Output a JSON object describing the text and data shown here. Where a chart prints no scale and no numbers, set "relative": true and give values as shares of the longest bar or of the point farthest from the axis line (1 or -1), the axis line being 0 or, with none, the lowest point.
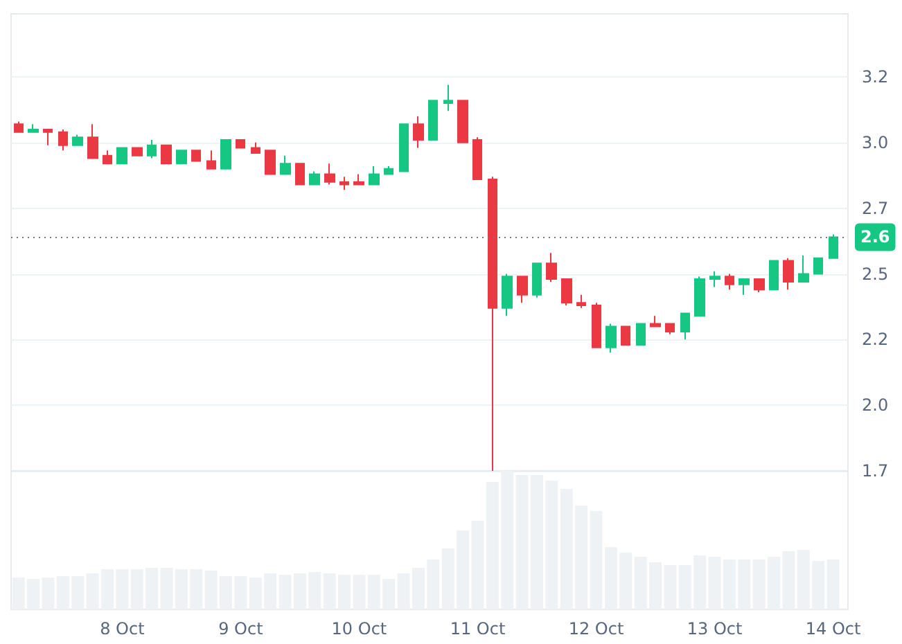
{
  "chart_data": [
    {
      "type": "candlestick",
      "x": [
        "--10-07T03:00",
        "--10-07T06:00",
        "--10-07T09:00",
        "--10-07T12:00",
        "--10-07T15:00",
        "--10-07T18:00",
        "--10-07T21:00",
        "--10-08T00:00",
        "--10-08T03:00",
        "--10-08T06:00",
        "--10-08T09:00",
        "--10-08T12:00",
        "--10-08T15:00",
        "--10-08T18:00",
        "--10-08T21:00",
        "--10-09T00:00",
        "--10-09T03:00",
        "--10-09T06:00",
        "--10-09T09:00",
        "--10-09T12:00",
        "--10-09T15:00",
        "--10-09T18:00",
        "--10-09T21:00",
        "--10-10T00:00",
        "--10-10T03:00",
        "--10-10T06:00",
        "--10-10T09:00",
        "--10-10T12:00",
        "--10-10T15:00",
        "--10-10T18:00",
        "--10-10T21:00",
        "--10-11T00:00",
        "--10-11T03:00",
        "--10-11T06:00",
        "--10-11T09:00",
        "--10-11T12:00",
        "--10-11T15:00",
        "--10-11T18:00",
        "--10-11T21:00",
        "--10-12T00:00",
        "--10-12T03:00",
        "--10-12T06:00",
        "--10-12T09:00",
        "--10-12T12:00",
        "--10-12T15:00",
        "--10-12T18:00",
        "--10-12T21:00",
        "--10-13T00:00",
        "--10-13T03:00",
        "--10-13T06:00",
        "--10-13T09:00",
        "--10-13T12:00",
        "--10-13T15:00",
        "--10-13T18:00",
        "--10-13T21:00",
        "--10-14T00:00"
      ],
      "ohlc": [
        [
          3.07,
          3.08,
          3.04,
          3.04
        ],
        [
          3.04,
          3.07,
          3.04,
          3.05
        ],
        [
          3.05,
          3.05,
          2.99,
          3.04
        ],
        [
          3.04,
          3.05,
          2.97,
          2.99
        ],
        [
          2.99,
          3.03,
          2.99,
          3.02
        ],
        [
          3.02,
          3.07,
          2.94,
          2.94
        ],
        [
          2.95,
          2.97,
          2.92,
          2.92
        ],
        [
          2.92,
          2.98,
          2.92,
          2.98
        ],
        [
          2.98,
          2.98,
          2.95,
          2.95
        ],
        [
          2.95,
          3.01,
          2.94,
          2.99
        ],
        [
          2.99,
          2.99,
          2.92,
          2.92
        ],
        [
          2.92,
          2.97,
          2.92,
          2.97
        ],
        [
          2.97,
          2.97,
          2.93,
          2.93
        ],
        [
          2.93,
          2.97,
          2.9,
          2.9
        ],
        [
          2.9,
          3.01,
          2.9,
          3.01
        ],
        [
          3.01,
          3.01,
          2.98,
          2.98
        ],
        [
          2.98,
          3.0,
          2.96,
          2.96
        ],
        [
          2.97,
          2.97,
          2.88,
          2.88
        ],
        [
          2.88,
          2.95,
          2.88,
          2.92
        ],
        [
          2.92,
          2.92,
          2.84,
          2.84
        ],
        [
          2.84,
          2.89,
          2.84,
          2.88
        ],
        [
          2.88,
          2.92,
          2.84,
          2.85
        ],
        [
          2.85,
          2.87,
          2.82,
          2.84
        ],
        [
          2.85,
          2.88,
          2.84,
          2.84
        ],
        [
          2.84,
          2.91,
          2.84,
          2.88
        ],
        [
          2.88,
          2.91,
          2.88,
          2.9
        ],
        [
          2.89,
          3.07,
          2.89,
          3.07
        ],
        [
          3.07,
          3.1,
          2.98,
          3.01
        ],
        [
          3.01,
          3.16,
          3.01,
          3.16
        ],
        [
          3.15,
          3.22,
          3.12,
          3.16
        ],
        [
          3.16,
          3.16,
          3.0,
          3.0
        ],
        [
          3.01,
          3.02,
          2.86,
          2.86
        ],
        [
          2.86,
          2.87,
          1.75,
          2.37
        ],
        [
          2.37,
          2.5,
          2.34,
          2.49
        ],
        [
          2.49,
          2.49,
          2.39,
          2.42
        ],
        [
          2.42,
          2.54,
          2.41,
          2.54
        ],
        [
          2.54,
          2.58,
          2.47,
          2.48
        ],
        [
          2.48,
          2.48,
          2.38,
          2.39
        ],
        [
          2.39,
          2.42,
          2.37,
          2.38
        ],
        [
          2.38,
          2.39,
          2.22,
          2.22
        ],
        [
          2.22,
          2.31,
          2.2,
          2.3
        ],
        [
          2.3,
          2.3,
          2.23,
          2.23
        ],
        [
          2.23,
          2.31,
          2.23,
          2.31
        ],
        [
          2.31,
          2.34,
          2.3,
          2.3
        ],
        [
          2.31,
          2.31,
          2.27,
          2.28
        ],
        [
          2.28,
          2.35,
          2.25,
          2.35
        ],
        [
          2.34,
          2.49,
          2.34,
          2.48
        ],
        [
          2.48,
          2.51,
          2.45,
          2.49
        ],
        [
          2.49,
          2.5,
          2.44,
          2.46
        ],
        [
          2.46,
          2.48,
          2.42,
          2.48
        ],
        [
          2.48,
          2.48,
          2.43,
          2.44
        ],
        [
          2.44,
          2.55,
          2.44,
          2.55
        ],
        [
          2.55,
          2.56,
          2.44,
          2.47
        ],
        [
          2.47,
          2.57,
          2.47,
          2.5
        ],
        [
          2.5,
          2.56,
          2.5,
          2.56
        ],
        [
          2.56,
          2.65,
          2.56,
          2.64
        ]
      ],
      "colors": [
        "#ea3943",
        "#16c784",
        "#ea3943",
        "#ea3943",
        "#16c784",
        "#ea3943",
        "#ea3943",
        "#16c784",
        "#ea3943",
        "#16c784",
        "#ea3943",
        "#16c784",
        "#ea3943",
        "#ea3943",
        "#16c784",
        "#ea3943",
        "#ea3943",
        "#ea3943",
        "#16c784",
        "#ea3943",
        "#16c784",
        "#ea3943",
        "#ea3943",
        "#ea3943",
        "#16c784",
        "#16c784",
        "#16c784",
        "#ea3943",
        "#16c784",
        "#16c784",
        "#ea3943",
        "#ea3943",
        "#ea3943",
        "#16c784",
        "#ea3943",
        "#16c784",
        "#ea3943",
        "#ea3943",
        "#ea3943",
        "#ea3943",
        "#16c784",
        "#ea3943",
        "#16c784",
        "#ea3943",
        "#ea3943",
        "#16c784",
        "#16c784",
        "#16c784",
        "#ea3943",
        "#16c784",
        "#ea3943",
        "#16c784",
        "#ea3943",
        "#16c784",
        "#16c784",
        "#16c784"
      ],
      "xlim": [
        "--10-07T01:30",
        "--10-14T03:00"
      ],
      "ylim": [
        1.75,
        3.49
      ],
      "yticks": [
        {
          "value": 1.75,
          "label": "1.7"
        },
        {
          "value": 2.0,
          "label": "2.0"
        },
        {
          "value": 2.25,
          "label": "2.2"
        },
        {
          "value": 2.5,
          "label": "2.5"
        },
        {
          "value": 2.75,
          "label": "2.7"
        },
        {
          "value": 3.0,
          "label": "3.0"
        },
        {
          "value": 3.25,
          "label": "3.2"
        }
      ],
      "ref_lines": [
        {
          "axis": "y",
          "value": 2.64,
          "label": "2.6",
          "color": "#777777",
          "line_style": "dotted"
        }
      ],
      "grid": "y",
      "tick_labels": "y"
    },
    {
      "type": "bar",
      "x": [
        "--10-07T03:00",
        "--10-07T06:00",
        "--10-07T09:00",
        "--10-07T12:00",
        "--10-07T15:00",
        "--10-07T18:00",
        "--10-07T21:00",
        "--10-08T00:00",
        "--10-08T03:00",
        "--10-08T06:00",
        "--10-08T09:00",
        "--10-08T12:00",
        "--10-08T15:00",
        "--10-08T18:00",
        "--10-08T21:00",
        "--10-09T00:00",
        "--10-09T03:00",
        "--10-09T06:00",
        "--10-09T09:00",
        "--10-09T12:00",
        "--10-09T15:00",
        "--10-09T18:00",
        "--10-09T21:00",
        "--10-10T00:00",
        "--10-10T03:00",
        "--10-10T06:00",
        "--10-10T09:00",
        "--10-10T12:00",
        "--10-10T15:00",
        "--10-10T18:00",
        "--10-10T21:00",
        "--10-11T00:00",
        "--10-11T03:00",
        "--10-11T06:00",
        "--10-11T09:00",
        "--10-11T12:00",
        "--10-11T15:00",
        "--10-11T18:00",
        "--10-11T21:00",
        "--10-12T00:00",
        "--10-12T03:00",
        "--10-12T06:00",
        "--10-12T09:00",
        "--10-12T12:00",
        "--10-12T15:00",
        "--10-12T18:00",
        "--10-12T21:00",
        "--10-13T00:00",
        "--10-13T03:00",
        "--10-13T06:00",
        "--10-13T09:00",
        "--10-13T12:00",
        "--10-13T15:00",
        "--10-13T18:00",
        "--10-13T21:00",
        "--10-14T00:00"
      ],
      "values": [
        0.23,
        0.22,
        0.23,
        0.24,
        0.24,
        0.26,
        0.29,
        0.29,
        0.29,
        0.3,
        0.3,
        0.29,
        0.29,
        0.28,
        0.24,
        0.24,
        0.23,
        0.26,
        0.25,
        0.26,
        0.27,
        0.26,
        0.25,
        0.25,
        0.25,
        0.22,
        0.26,
        0.3,
        0.36,
        0.44,
        0.57,
        0.64,
        0.92,
        1,
        0.97,
        0.97,
        0.93,
        0.87,
        0.75,
        0.71,
        0.45,
        0.41,
        0.38,
        0.34,
        0.32,
        0.32,
        0.39,
        0.38,
        0.36,
        0.36,
        0.36,
        0.38,
        0.42,
        0.43,
        0.35,
        0.36
      ],
      "color": "#eff2f5",
      "relative": true,
      "xlim": [
        "--10-07T01:30",
        "--10-14T03:00"
      ],
      "xticks": [
        {
          "value": "--10-08",
          "label": "8 Oct"
        },
        {
          "value": "--10-09",
          "label": "9 Oct"
        },
        {
          "value": "--10-10",
          "label": "10 Oct"
        },
        {
          "value": "--10-11",
          "label": "11 Oct"
        },
        {
          "value": "--10-12",
          "label": "12 Oct"
        },
        {
          "value": "--10-13",
          "label": "13 Oct"
        },
        {
          "value": "--10-14",
          "label": "14 Oct"
        }
      ],
      "tick_labels": "x"
    }
  ]
}
